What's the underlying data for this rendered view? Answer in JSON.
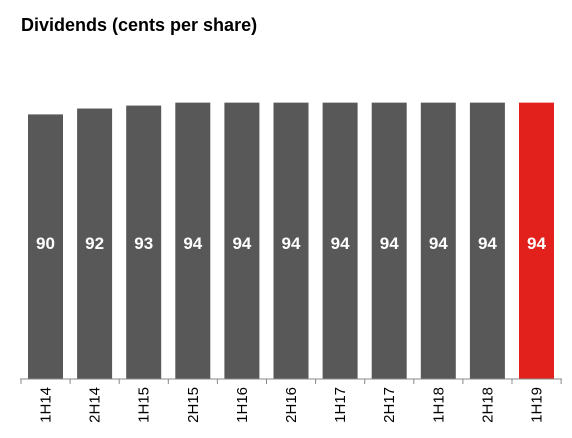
{
  "chart_data": {
    "type": "bar",
    "title": "Dividends (cents per share)",
    "xlabel": "",
    "ylabel": "",
    "categories": [
      "1H14",
      "2H14",
      "1H15",
      "2H15",
      "1H16",
      "2H16",
      "1H17",
      "2H17",
      "1H18",
      "2H18",
      "1H19"
    ],
    "values": [
      90,
      92,
      93,
      94,
      94,
      94,
      94,
      94,
      94,
      94,
      94
    ],
    "data_labels": [
      "90",
      "92",
      "93",
      "94",
      "94",
      "94",
      "94",
      "94",
      "94",
      "94",
      "94"
    ],
    "ylim": [
      0,
      100
    ],
    "grid": false,
    "legend": "none",
    "colors": {
      "default_bar": "#585858",
      "highlight_bar": "#e2211c",
      "highlight_index": 10,
      "axis": "#888888"
    }
  }
}
